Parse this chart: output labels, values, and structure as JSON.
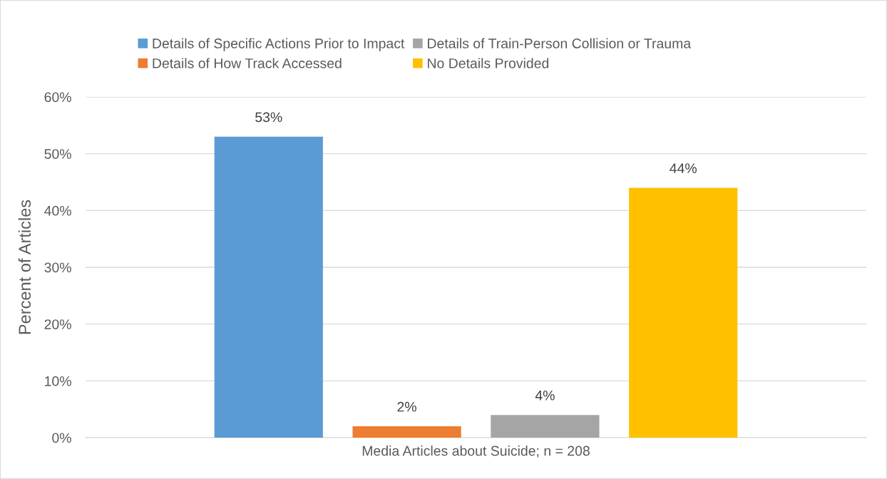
{
  "chart_data": {
    "type": "bar",
    "categories": [
      "Media Articles about Suicide; n = 208"
    ],
    "ylabel": "Percent of Articles",
    "series": [
      {
        "name": "Details of Specific Actions Prior to Impact",
        "color": "#5b9bd5",
        "values": [
          53
        ],
        "value_labels": [
          "53%"
        ]
      },
      {
        "name": "Details of How Track Accessed",
        "color": "#ed7d31",
        "values": [
          2
        ],
        "value_labels": [
          "2%"
        ]
      },
      {
        "name": "Details of Train-Person Collision or Trauma",
        "color": "#a5a5a5",
        "values": [
          4
        ],
        "value_labels": [
          "4%"
        ]
      },
      {
        "name": "No Details Provided",
        "color": "#ffc000",
        "values": [
          44
        ],
        "value_labels": [
          "44%"
        ]
      }
    ],
    "ylim": [
      0,
      60
    ],
    "yticks": [
      {
        "value": 0,
        "label": "0%"
      },
      {
        "value": 10,
        "label": "10%"
      },
      {
        "value": 20,
        "label": "20%"
      },
      {
        "value": 30,
        "label": "30%"
      },
      {
        "value": 40,
        "label": "40%"
      },
      {
        "value": 50,
        "label": "50%"
      },
      {
        "value": 60,
        "label": "60%"
      }
    ],
    "grid": "y",
    "legend": "top"
  }
}
